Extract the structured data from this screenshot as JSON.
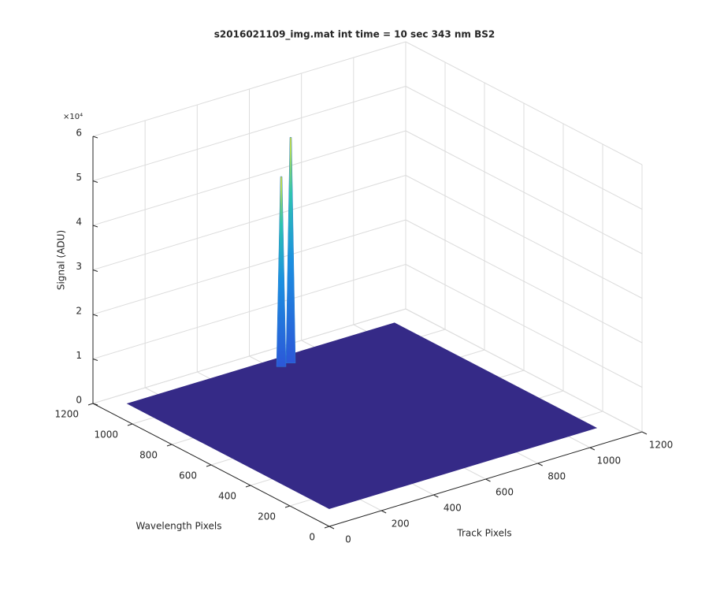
{
  "chart_data": {
    "type": "surface3d",
    "title": "s2016021109_img.mat int time = 10 sec  343 nm BS2",
    "xlabel": "Track Pixels",
    "ylabel": "Wavelength Pixels",
    "zlabel": "Signal (ADU)",
    "z_exponent_label": "×10⁴",
    "xlim": [
      0,
      1200
    ],
    "xticks": [
      0,
      200,
      400,
      600,
      800,
      1000,
      1200
    ],
    "ylim": [
      0,
      1200
    ],
    "yticks": [
      0,
      200,
      400,
      600,
      800,
      1000,
      1200
    ],
    "zlim": [
      0,
      60000
    ],
    "zticks": [
      {
        "value": 0,
        "label": "0"
      },
      {
        "value": 10000,
        "label": "1"
      },
      {
        "value": 20000,
        "label": "2"
      },
      {
        "value": 30000,
        "label": "3"
      },
      {
        "value": 40000,
        "label": "4"
      },
      {
        "value": 50000,
        "label": "5"
      },
      {
        "value": 60000,
        "label": "6"
      }
    ],
    "grid": true,
    "surface_x": [
      0,
      1024
    ],
    "surface_y": [
      0,
      1024
    ],
    "surface_baseline": 4000,
    "color": "#352a87",
    "peaks": [
      {
        "x": 560,
        "y": 985,
        "value": 46000
      },
      {
        "x": 600,
        "y": 990,
        "value": 54000
      }
    ]
  }
}
